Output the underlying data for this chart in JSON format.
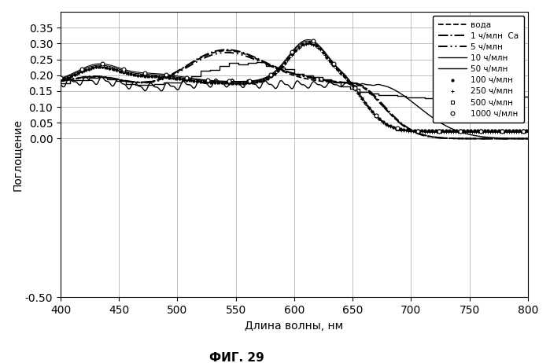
{
  "title": "ФИГ. 29",
  "xlabel": "Длина волны, нм",
  "ylabel": "Поглощение",
  "xlim": [
    400,
    800
  ],
  "ylim": [
    -0.5,
    0.4
  ],
  "yticks": [
    -0.5,
    0.0,
    0.05,
    0.1,
    0.15,
    0.2,
    0.25,
    0.3,
    0.35
  ],
  "xticks": [
    400,
    450,
    500,
    550,
    600,
    650,
    700,
    750,
    800
  ],
  "legend_labels": [
    "вода",
    "1 ч/млн  Ca",
    "5 ч/млн",
    "10 ч/млн",
    "50 ч/млн",
    "100 ч/млн",
    "250 ч/млн",
    "500 ч/млн",
    "1000 ч/млн"
  ],
  "background": "#ffffff"
}
